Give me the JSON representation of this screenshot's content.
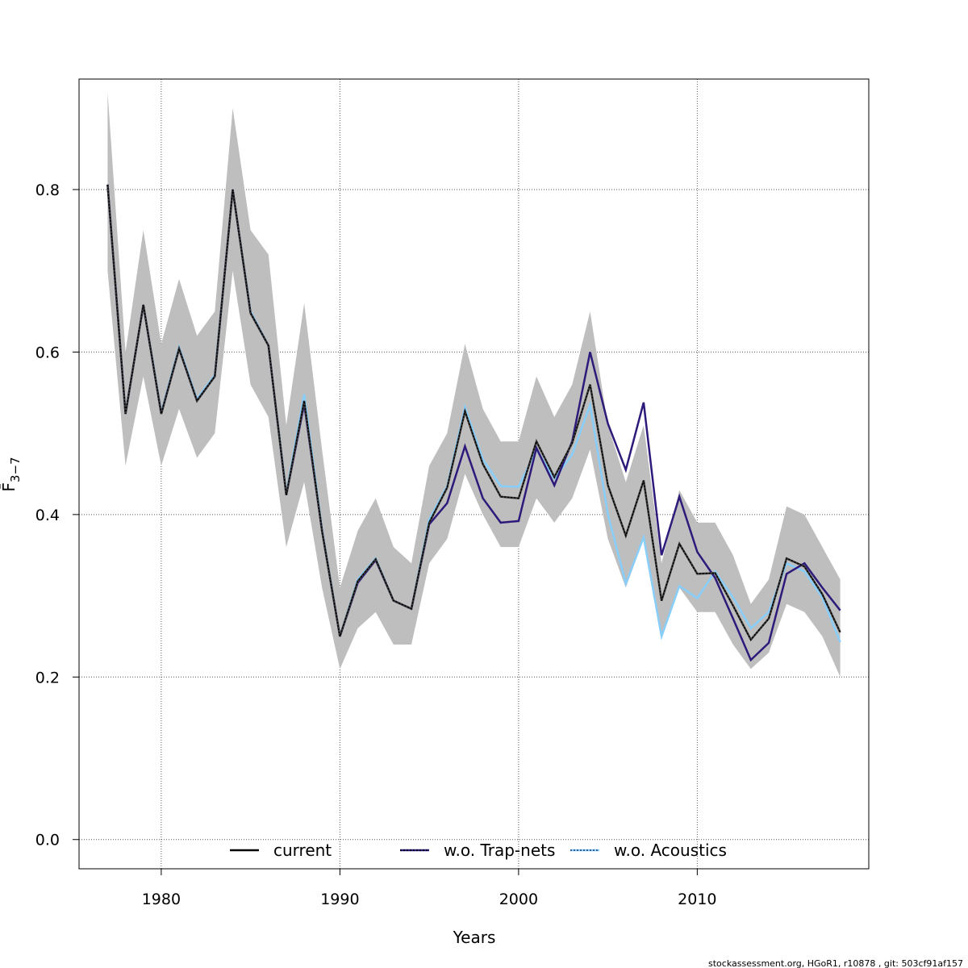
{
  "chart_data": {
    "type": "line",
    "xlabel": "Years",
    "ylabel": "F̄",
    "ylabel_sub": "3−7",
    "xlim": [
      1975.4,
      2019.6
    ],
    "ylim": [
      -0.036,
      0.936
    ],
    "x_ticks": [
      1980,
      1990,
      2000,
      2010
    ],
    "x_tick_labels": [
      "1980",
      "1990",
      "2000",
      "2010"
    ],
    "y_ticks": [
      0.0,
      0.2,
      0.4,
      0.6,
      0.8
    ],
    "y_tick_labels": [
      "0.0",
      "0.2",
      "0.4",
      "0.6",
      "0.8"
    ],
    "grid": true,
    "legend_position": "bottom",
    "x": [
      1977,
      1978,
      1979,
      1980,
      1981,
      1982,
      1983,
      1984,
      1985,
      1986,
      1987,
      1988,
      1989,
      1990,
      1991,
      1992,
      1993,
      1994,
      1995,
      1996,
      1997,
      1998,
      1999,
      2000,
      2001,
      2002,
      2003,
      2004,
      2005,
      2006,
      2007,
      2008,
      2009,
      2010,
      2011,
      2012,
      2013,
      2014,
      2015,
      2016,
      2017,
      2018
    ],
    "confidence_band": {
      "upper": [
        0.92,
        0.6,
        0.75,
        0.61,
        0.69,
        0.62,
        0.65,
        0.9,
        0.75,
        0.72,
        0.51,
        0.66,
        0.48,
        0.31,
        0.38,
        0.42,
        0.36,
        0.34,
        0.46,
        0.5,
        0.61,
        0.53,
        0.49,
        0.49,
        0.57,
        0.52,
        0.56,
        0.65,
        0.51,
        0.44,
        0.51,
        0.34,
        0.43,
        0.39,
        0.39,
        0.35,
        0.29,
        0.32,
        0.41,
        0.4,
        0.36,
        0.32
      ],
      "lower": [
        0.7,
        0.46,
        0.57,
        0.46,
        0.53,
        0.47,
        0.5,
        0.7,
        0.56,
        0.52,
        0.36,
        0.44,
        0.31,
        0.21,
        0.26,
        0.28,
        0.24,
        0.24,
        0.34,
        0.37,
        0.45,
        0.4,
        0.36,
        0.36,
        0.42,
        0.39,
        0.42,
        0.48,
        0.37,
        0.31,
        0.37,
        0.25,
        0.31,
        0.28,
        0.28,
        0.24,
        0.21,
        0.23,
        0.29,
        0.28,
        0.25,
        0.2
      ]
    },
    "series": [
      {
        "name": "current",
        "color": "#000000",
        "values": [
          0.806,
          0.524,
          0.658,
          0.524,
          0.604,
          0.54,
          0.57,
          0.8,
          0.648,
          0.608,
          0.424,
          0.54,
          0.38,
          0.25,
          0.318,
          0.345,
          0.294,
          0.284,
          0.39,
          0.433,
          0.527,
          0.462,
          0.422,
          0.42,
          0.49,
          0.446,
          0.488,
          0.56,
          0.436,
          0.374,
          0.442,
          0.294,
          0.364,
          0.327,
          0.328,
          0.288,
          0.246,
          0.272,
          0.346,
          0.336,
          0.302,
          0.255
        ]
      },
      {
        "name": "w.o. Trap-nets",
        "color": "#2e1a7a",
        "values": [
          0.806,
          0.524,
          0.658,
          0.524,
          0.604,
          0.54,
          0.57,
          0.8,
          0.648,
          0.608,
          0.424,
          0.536,
          0.38,
          0.25,
          0.316,
          0.344,
          0.294,
          0.284,
          0.388,
          0.414,
          0.484,
          0.42,
          0.39,
          0.392,
          0.482,
          0.436,
          0.49,
          0.6,
          0.512,
          0.455,
          0.538,
          0.35,
          0.422,
          0.354,
          0.322,
          0.272,
          0.221,
          0.242,
          0.327,
          0.34,
          0.31,
          0.282
        ]
      },
      {
        "name": "w.o. Acoustics",
        "color": "#87cefa",
        "values": [
          0.806,
          0.524,
          0.658,
          0.526,
          0.606,
          0.542,
          0.572,
          0.8,
          0.65,
          0.608,
          0.426,
          0.548,
          0.382,
          0.25,
          0.32,
          0.346,
          0.294,
          0.284,
          0.394,
          0.435,
          0.532,
          0.468,
          0.435,
          0.434,
          0.48,
          0.444,
          0.474,
          0.535,
          0.4,
          0.315,
          0.372,
          0.25,
          0.312,
          0.297,
          0.33,
          0.298,
          0.26,
          0.28,
          0.34,
          0.33,
          0.298,
          0.243
        ]
      }
    ]
  },
  "footer": "stockassessment.org, HGoR1, r10878 , git: 503cf91af157"
}
